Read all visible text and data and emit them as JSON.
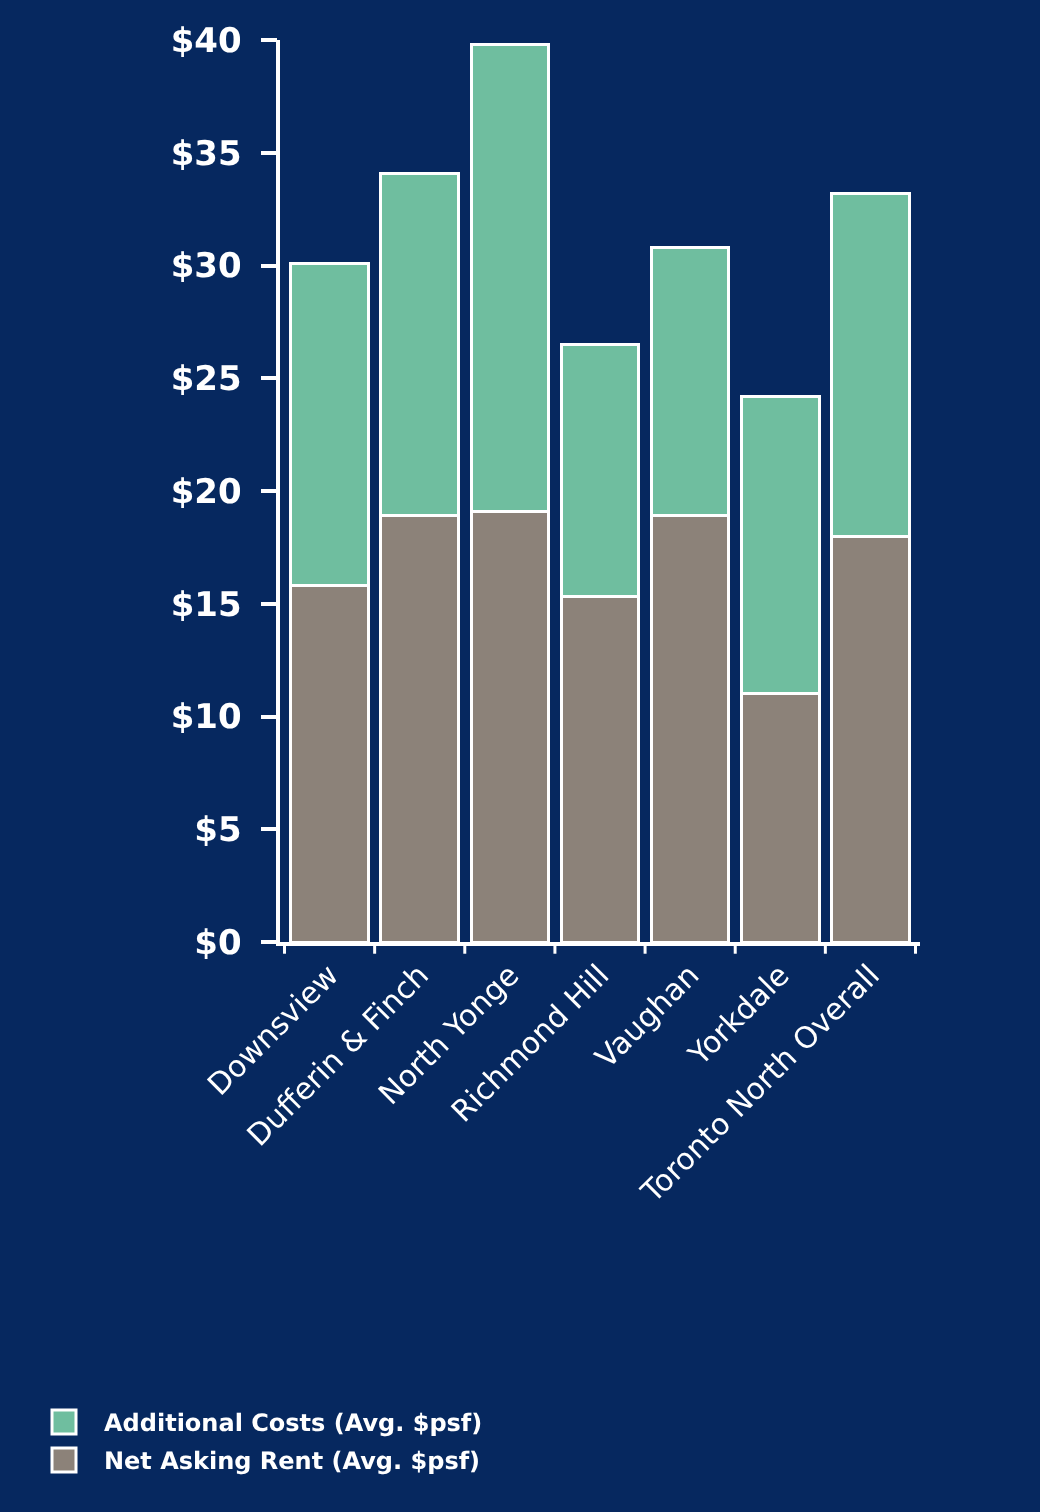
{
  "chart_data": {
    "type": "bar",
    "stacked": true,
    "categories": [
      "Downsview",
      "Dufferin & Finch",
      "North Yonge",
      "Richmond Hill",
      "Vaughan",
      "Yorkdale",
      "Toronto North Overall"
    ],
    "series": [
      {
        "name": "Net Asking Rent (Avg. $psf)",
        "color": "#8c8279",
        "values": [
          15.8,
          18.9,
          19.1,
          15.3,
          18.9,
          11.0,
          18.0
        ]
      },
      {
        "name": "Additional Costs (Avg. $psf)",
        "color": "#6fbe9f",
        "values": [
          14.3,
          15.2,
          20.7,
          11.2,
          11.9,
          13.2,
          15.2
        ]
      }
    ],
    "ylim": [
      0,
      40
    ],
    "yticks": [
      {
        "value": 0,
        "label": "$0"
      },
      {
        "value": 5,
        "label": "$5"
      },
      {
        "value": 10,
        "label": "$10"
      },
      {
        "value": 15,
        "label": "$15"
      },
      {
        "value": 20,
        "label": "$20"
      },
      {
        "value": 25,
        "label": "$25"
      },
      {
        "value": 30,
        "label": "$30"
      },
      {
        "value": 35,
        "label": "$35"
      },
      {
        "value": 40,
        "label": "$40"
      }
    ],
    "grid": false,
    "legend": "bottom"
  }
}
